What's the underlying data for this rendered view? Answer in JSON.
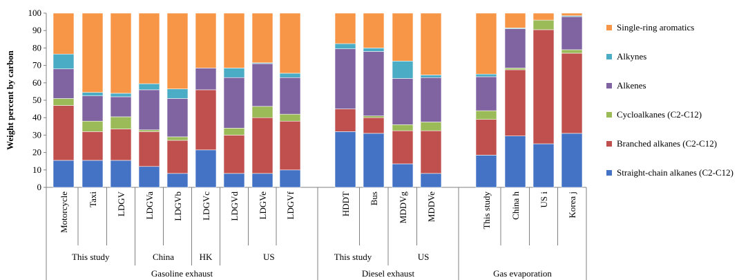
{
  "chart_data": {
    "type": "bar",
    "stacked": true,
    "ylabel": "Weight percent by carbon",
    "ylim": [
      0,
      100
    ],
    "y_ticks": [
      0,
      10,
      20,
      30,
      40,
      50,
      60,
      70,
      80,
      90,
      100
    ],
    "grid": false,
    "legend_position": "right",
    "categories": [
      "Motorcycle",
      "Taxi",
      "LDGV",
      "LDGVa",
      "LDGVb",
      "LDGVc",
      "LDGVd",
      "LDGVe",
      "LDGVf",
      "HDDT",
      "Bus",
      "MDDVg",
      "MDDVe",
      "This study",
      "China h",
      "US i",
      "Korea j"
    ],
    "groups_level1": [
      {
        "label": "This study",
        "categories": [
          "Motorcycle",
          "Taxi",
          "LDGV"
        ]
      },
      {
        "label": "China",
        "categories": [
          "LDGVa",
          "LDGVb"
        ]
      },
      {
        "label": "HK",
        "categories": [
          "LDGVc"
        ]
      },
      {
        "label": "US",
        "categories": [
          "LDGVd",
          "LDGVe",
          "LDGVf"
        ]
      },
      {
        "label": "This study",
        "categories": [
          "HDDT",
          "Bus"
        ]
      },
      {
        "label": "US",
        "categories": [
          "MDDVg",
          "MDDVe"
        ]
      }
    ],
    "groups_level2": [
      {
        "label": "Gasoline exhaust",
        "categories": [
          "Motorcycle",
          "Taxi",
          "LDGV",
          "LDGVa",
          "LDGVb",
          "LDGVc",
          "LDGVd",
          "LDGVe",
          "LDGVf"
        ]
      },
      {
        "label": "Diesel exhaust",
        "categories": [
          "HDDT",
          "Bus",
          "MDDVg",
          "MDDVe"
        ]
      },
      {
        "label": "Gas evaporation",
        "categories": [
          "This study",
          "China h",
          "US i",
          "Korea j"
        ]
      }
    ],
    "series": [
      {
        "name": "Straight-chain alkanes (C2-C12)",
        "color": "#4472c4",
        "values": [
          15.5,
          15.5,
          15.5,
          12,
          8,
          21.5,
          8,
          8,
          10,
          32,
          31,
          13.5,
          8,
          18.5,
          29.5,
          25,
          31
        ]
      },
      {
        "name": "Branched alkanes (C2-C12)",
        "color": "#c0504d",
        "values": [
          31.5,
          16.5,
          18,
          20,
          19,
          34.5,
          22,
          32,
          28,
          13,
          9,
          19,
          24.5,
          20.5,
          38,
          65.5,
          46
        ]
      },
      {
        "name": "Cycloalkanes (C2-C12)",
        "color": "#9bbb59",
        "values": [
          4,
          6,
          7,
          1,
          2,
          0,
          4,
          6.5,
          4,
          0,
          1,
          3.5,
          5,
          5,
          1,
          5.5,
          2
        ]
      },
      {
        "name": "Alkenes",
        "color": "#8064a2",
        "values": [
          17,
          14.5,
          11.5,
          23,
          22,
          12.5,
          29,
          24.5,
          21,
          34.5,
          37,
          26.5,
          25.5,
          19.5,
          22.5,
          0,
          19
        ]
      },
      {
        "name": "Alkynes",
        "color": "#4bacc6",
        "values": [
          8.5,
          2,
          2,
          3.5,
          5.5,
          0,
          5.5,
          0.5,
          2.5,
          3,
          2,
          10,
          1.5,
          1.5,
          0.5,
          0,
          0.5
        ]
      },
      {
        "name": "Single-ring aromatics",
        "color": "#f79646",
        "values": [
          23.5,
          45.5,
          46,
          40.5,
          43.5,
          31.5,
          31.5,
          28.5,
          34.5,
          17.5,
          20,
          27.5,
          35.5,
          35,
          8.5,
          4,
          1.5
        ]
      }
    ]
  }
}
